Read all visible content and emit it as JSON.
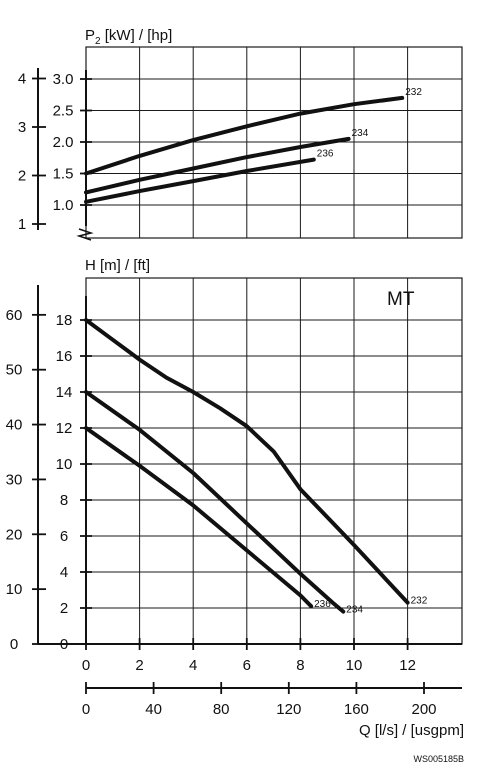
{
  "chart_data": [
    {
      "type": "line",
      "ylabel": "P2 [kW] /  [hp]",
      "ylabel_main": "P",
      "ylabel_sub": "2",
      "ylabel_rest": " [kW] /  [hp]",
      "xlim": [
        0,
        14
      ],
      "ylim_kw": [
        0.9,
        3.3
      ],
      "left_axis_ticks_hp": [
        {
          "value": 1,
          "label": "1"
        },
        {
          "value": 2,
          "label": "2"
        },
        {
          "value": 3,
          "label": "3"
        },
        {
          "value": 4,
          "label": "4"
        }
      ],
      "inner_axis_ticks_kw": [
        {
          "value": 1.0,
          "label": "1.0"
        },
        {
          "value": 1.5,
          "label": "1.5"
        },
        {
          "value": 2.0,
          "label": "2.0"
        },
        {
          "value": 2.5,
          "label": "2.5"
        },
        {
          "value": 3.0,
          "label": "3.0"
        }
      ],
      "series": [
        {
          "name": "232",
          "x": [
            0,
            2,
            4,
            6,
            8,
            10,
            11.8
          ],
          "y": [
            1.5,
            1.78,
            2.03,
            2.25,
            2.45,
            2.6,
            2.7
          ]
        },
        {
          "name": "234",
          "x": [
            0,
            2,
            4,
            6,
            8,
            9.8
          ],
          "y": [
            1.2,
            1.4,
            1.58,
            1.76,
            1.92,
            2.05
          ]
        },
        {
          "name": "236",
          "x": [
            0,
            2,
            4,
            6,
            8.5
          ],
          "y": [
            1.05,
            1.22,
            1.38,
            1.54,
            1.72
          ]
        }
      ]
    },
    {
      "type": "line",
      "ylabel": "H [m] / [ft]",
      "xlabel": "Q [l/s] / [usgpm]",
      "annotation": "MT",
      "xlim": [
        0,
        14
      ],
      "ylim": [
        0,
        19
      ],
      "x_ticks": [
        {
          "value": 0,
          "label": "0"
        },
        {
          "value": 2,
          "label": "2"
        },
        {
          "value": 4,
          "label": "4"
        },
        {
          "value": 6,
          "label": "6"
        },
        {
          "value": 8,
          "label": "8"
        },
        {
          "value": 10,
          "label": "10"
        },
        {
          "value": 12,
          "label": "12"
        }
      ],
      "y_ticks_m": [
        {
          "value": 0,
          "label": "0"
        },
        {
          "value": 2,
          "label": "2"
        },
        {
          "value": 4,
          "label": "4"
        },
        {
          "value": 6,
          "label": "6"
        },
        {
          "value": 8,
          "label": "8"
        },
        {
          "value": 10,
          "label": "10"
        },
        {
          "value": 12,
          "label": "12"
        },
        {
          "value": 14,
          "label": "14"
        },
        {
          "value": 16,
          "label": "16"
        },
        {
          "value": 18,
          "label": "18"
        }
      ],
      "y_ticks_ft": [
        {
          "value": 0,
          "label": "0"
        },
        {
          "value": 10,
          "label": "10"
        },
        {
          "value": 20,
          "label": "20"
        },
        {
          "value": 30,
          "label": "30"
        },
        {
          "value": 40,
          "label": "40"
        },
        {
          "value": 50,
          "label": "50"
        },
        {
          "value": 60,
          "label": "60"
        }
      ],
      "x_ticks_usgpm": [
        {
          "value": 0,
          "label": "0"
        },
        {
          "value": 40,
          "label": "40"
        },
        {
          "value": 80,
          "label": "80"
        },
        {
          "value": 120,
          "label": "120"
        },
        {
          "value": 160,
          "label": "160"
        },
        {
          "value": 200,
          "label": "200"
        }
      ],
      "series": [
        {
          "name": "232",
          "x": [
            0,
            1,
            2,
            3,
            4,
            5,
            6,
            7,
            8,
            10,
            12
          ],
          "y": [
            18,
            16.9,
            15.8,
            14.8,
            14,
            13.1,
            12.1,
            10.7,
            8.6,
            5.5,
            2.3
          ]
        },
        {
          "name": "234",
          "x": [
            0,
            2,
            4,
            6,
            8,
            9.2,
            9.6
          ],
          "y": [
            14,
            11.9,
            9.5,
            6.7,
            3.9,
            2.3,
            1.8
          ]
        },
        {
          "name": "236",
          "x": [
            0,
            2,
            4,
            6,
            8,
            8.4
          ],
          "y": [
            12,
            9.9,
            7.7,
            5.2,
            2.7,
            2.1
          ]
        }
      ]
    }
  ],
  "footer_code": "WS005185B"
}
